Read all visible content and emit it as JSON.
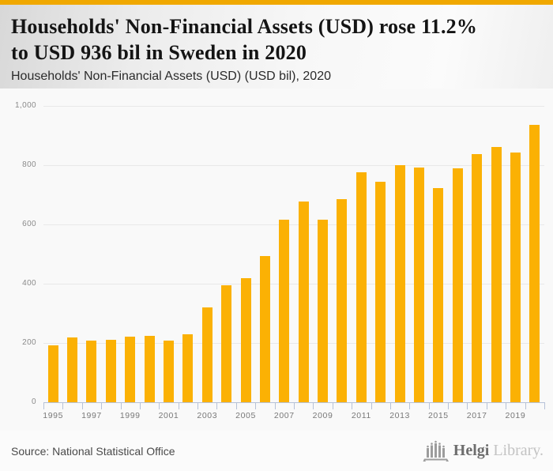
{
  "theme": {
    "accent_color": "#F0A800",
    "bar_color": "#FBB104",
    "axis_color": "#B6C2D8",
    "grid_color": "#E8E8E8"
  },
  "header": {
    "title_lines": [
      "Households' Non-Financial Assets (USD) rose 11.2%",
      "to USD 936 bil in Sweden in 2020"
    ],
    "subtitle": "Households' Non-Financial Assets (USD) (USD bil), 2020"
  },
  "chart_data": {
    "type": "bar",
    "title": "Households' Non-Financial Assets (USD) (USD bil), 2020",
    "x": [
      1995,
      1996,
      1997,
      1998,
      1999,
      2000,
      2001,
      2002,
      2003,
      2004,
      2005,
      2006,
      2007,
      2008,
      2009,
      2010,
      2011,
      2012,
      2013,
      2014,
      2015,
      2016,
      2017,
      2018,
      2019,
      2020
    ],
    "values": [
      193,
      218,
      208,
      210,
      220,
      224,
      207,
      230,
      320,
      395,
      418,
      493,
      615,
      678,
      615,
      686,
      775,
      744,
      800,
      792,
      722,
      788,
      838,
      860,
      842,
      936
    ],
    "xlabel": "",
    "ylabel": "",
    "ylim": [
      0,
      1000
    ],
    "yticks": [
      0,
      200,
      400,
      600,
      800,
      1000
    ],
    "ytick_labels": [
      "0",
      "200",
      "400",
      "600",
      "800",
      "1,000"
    ],
    "xtick_labels": [
      "1995",
      "1997",
      "1999",
      "2001",
      "2003",
      "2005",
      "2007",
      "2009",
      "2011",
      "2013",
      "2015",
      "2017",
      "2019"
    ],
    "grid": true,
    "legend": false,
    "bar_color": "#FBB104"
  },
  "footer": {
    "source": "Source: National Statistical Office",
    "logo": {
      "icon": "library-building-icon",
      "text_bold": "Helgi",
      "text_light": "Library."
    }
  }
}
